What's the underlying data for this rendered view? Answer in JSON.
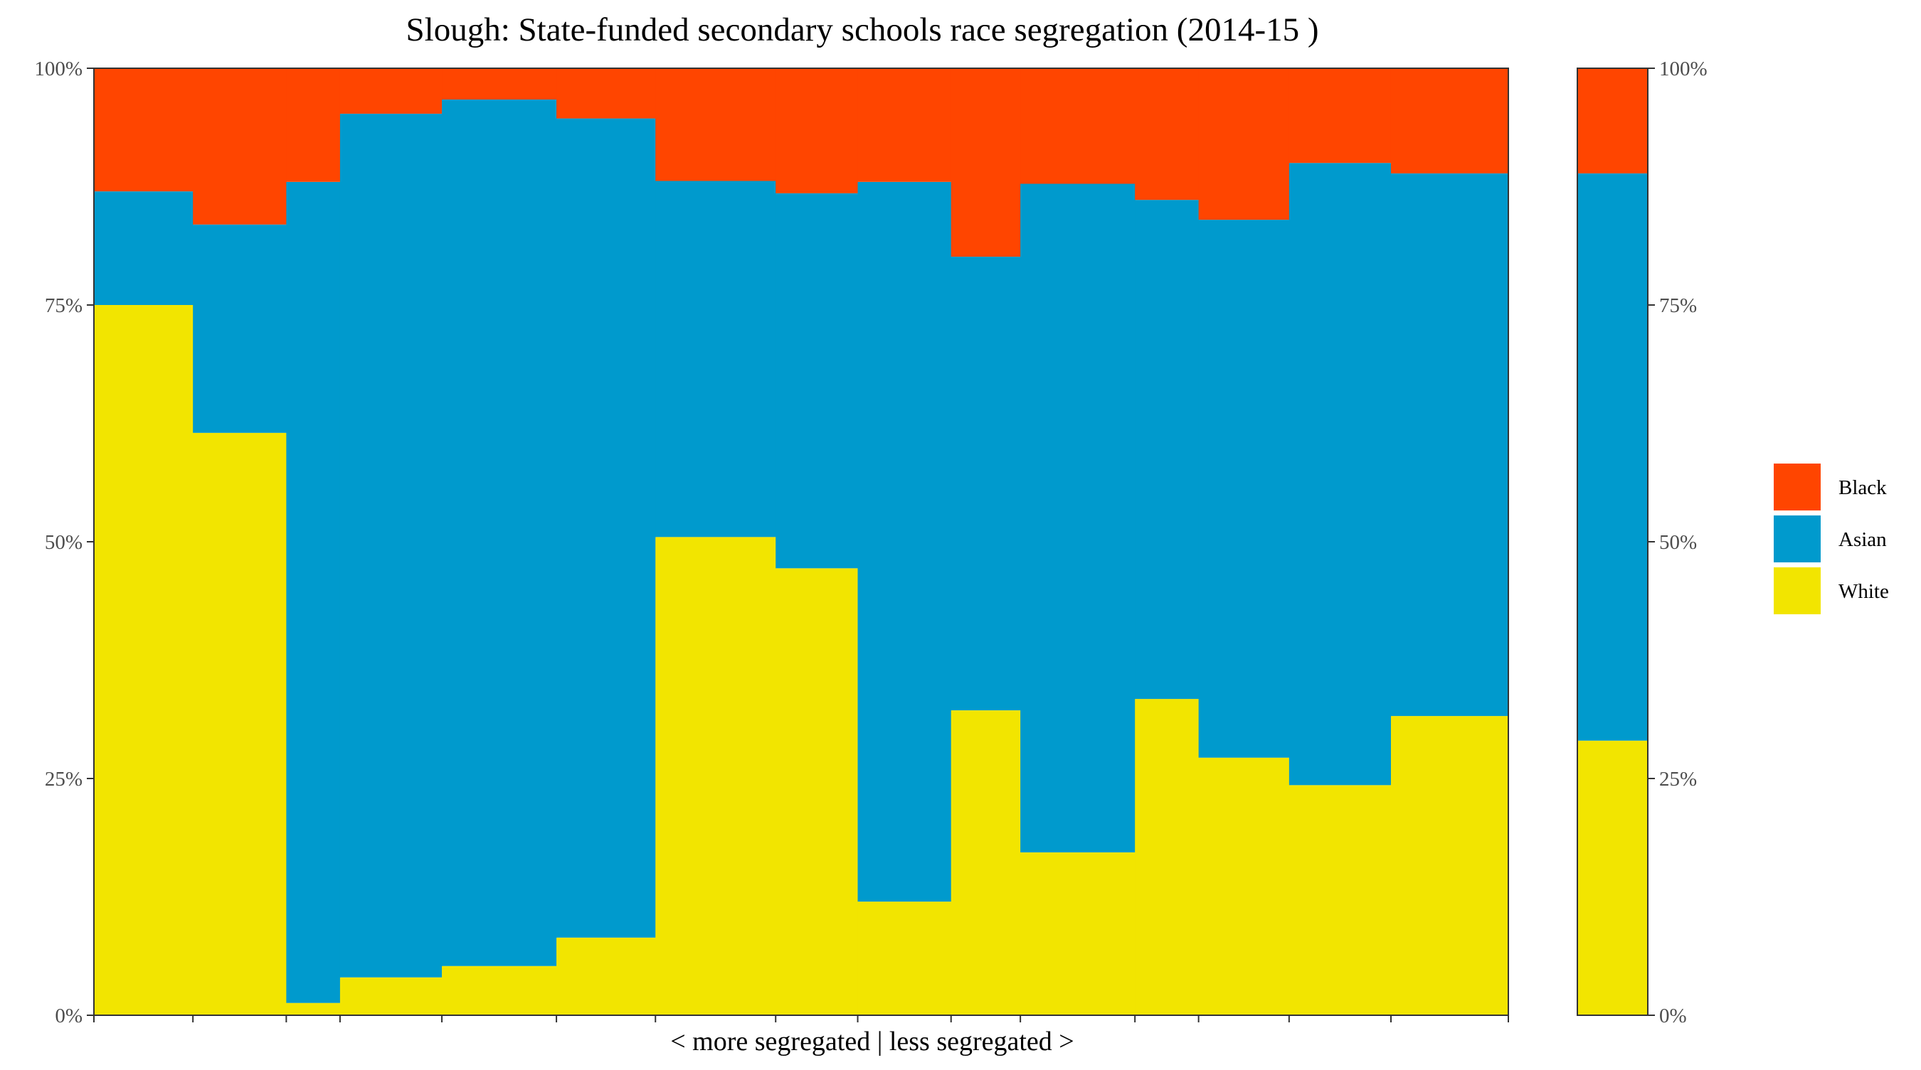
{
  "chart_data": {
    "type": "bar",
    "stacked": true,
    "variable_width": true,
    "title": "Slough: State-funded secondary schools race segregation (2014-15 )",
    "xlabel": "< more segregated | less segregated >",
    "ylabel": "",
    "ylim": [
      0,
      100
    ],
    "y_ticks": [
      "0%",
      "25%",
      "50%",
      "75%",
      "100%"
    ],
    "y_tick_values": [
      0,
      25,
      50,
      75,
      100
    ],
    "grid": false,
    "secondary_y_axis": true,
    "legend_position": "right",
    "series": [
      {
        "name": "Black",
        "color": "#ff4500"
      },
      {
        "name": "Asian",
        "color": "#009acd"
      },
      {
        "name": "White",
        "color": "#f2e500"
      }
    ],
    "schools": [
      {
        "share": 7.0,
        "white": 75.0,
        "asian": 12.0,
        "black": 13.0
      },
      {
        "share": 6.6,
        "white": 61.5,
        "asian": 22.0,
        "black": 16.5
      },
      {
        "share": 3.8,
        "white": 1.3,
        "asian": 86.7,
        "black": 12.0
      },
      {
        "share": 7.2,
        "white": 4.0,
        "asian": 91.2,
        "black": 4.8
      },
      {
        "share": 8.1,
        "white": 5.2,
        "asian": 91.5,
        "black": 3.3
      },
      {
        "share": 7.0,
        "white": 8.2,
        "asian": 86.5,
        "black": 5.3
      },
      {
        "share": 8.5,
        "white": 50.5,
        "asian": 37.6,
        "black": 11.9
      },
      {
        "share": 5.8,
        "white": 47.2,
        "asian": 39.6,
        "black": 13.2
      },
      {
        "share": 6.6,
        "white": 12.0,
        "asian": 76.0,
        "black": 12.0
      },
      {
        "share": 4.9,
        "white": 32.2,
        "asian": 47.9,
        "black": 19.9
      },
      {
        "share": 8.1,
        "white": 17.2,
        "asian": 70.6,
        "black": 12.2
      },
      {
        "share": 4.5,
        "white": 33.4,
        "asian": 52.7,
        "black": 13.9
      },
      {
        "share": 6.4,
        "white": 27.2,
        "asian": 56.8,
        "black": 16.0
      },
      {
        "share": 7.2,
        "white": 24.3,
        "asian": 65.7,
        "black": 10.0
      },
      {
        "share": 8.3,
        "white": 31.6,
        "asian": 57.3,
        "black": 11.1
      }
    ],
    "overall": {
      "white": 29.0,
      "asian": 59.9,
      "black": 11.1
    }
  }
}
